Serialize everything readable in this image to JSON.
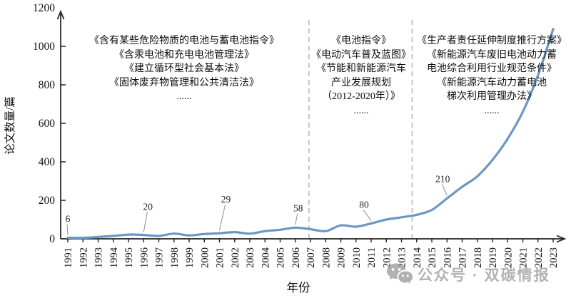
{
  "chart_data": {
    "type": "line",
    "title": "",
    "xlabel": "年份",
    "ylabel": "论文数量/篇",
    "ylim": [
      0,
      1200
    ],
    "yticks": [
      0,
      200,
      400,
      600,
      800,
      1000,
      1200
    ],
    "grid": false,
    "legend": null,
    "line_color": "#6b97c5",
    "x": [
      1991,
      1992,
      1993,
      1994,
      1995,
      1996,
      1997,
      1998,
      1999,
      2000,
      2001,
      2002,
      2003,
      2004,
      2005,
      2006,
      2007,
      2008,
      2009,
      2010,
      2011,
      2012,
      2013,
      2014,
      2015,
      2016,
      2017,
      2018,
      2019,
      2020,
      2021,
      2022,
      2023
    ],
    "series": [
      {
        "name": "论文数量",
        "values": [
          6,
          5,
          10,
          15,
          22,
          20,
          15,
          27,
          18,
          25,
          29,
          35,
          27,
          40,
          47,
          58,
          50,
          40,
          70,
          63,
          80,
          100,
          112,
          125,
          150,
          210,
          270,
          325,
          410,
          520,
          660,
          850,
          1090
        ]
      }
    ],
    "point_labels": [
      {
        "x": 1991,
        "label": "6"
      },
      {
        "x": 1996,
        "label": "20"
      },
      {
        "x": 2001,
        "label": "29"
      },
      {
        "x": 2006,
        "label": "58"
      },
      {
        "x": 2011,
        "label": "80"
      },
      {
        "x": 2016,
        "label": "210"
      }
    ],
    "dashed_dividers_x": [
      2006.9,
      2013.7
    ],
    "annotations": [
      {
        "id": "policy-block-early",
        "lines": [
          "《含有某些危险物质的电池与蓄电池指令》",
          "《含汞电池和充电电池管理法》",
          "《建立循环型社会基本法》",
          "《固体废弃物管理和公共清洁法》",
          "......"
        ]
      },
      {
        "id": "policy-block-mid",
        "lines": [
          "《电池指令》",
          "《电动汽车普及蓝图》",
          "《节能和新能源汽车",
          "产业发展规划",
          "（2012-2020年）》",
          "......"
        ]
      },
      {
        "id": "policy-block-late",
        "lines": [
          "《生产者责任延伸制度推行方案》",
          "《新能源汽车废旧电池动力蓄",
          "电池综合利用行业规范条件》",
          "《新能源汽车动力蓄电池",
          "梯次利用管理办法》",
          "......"
        ]
      }
    ]
  },
  "colors": {
    "axis": "#222222",
    "dashed_divider": "#a9a9a9",
    "leader_line": "#8f8f8f",
    "watermark_gray": "#9e9e9e"
  },
  "watermark": {
    "icon": "wechat-icon",
    "text": "公众号 · 双碳情报"
  }
}
